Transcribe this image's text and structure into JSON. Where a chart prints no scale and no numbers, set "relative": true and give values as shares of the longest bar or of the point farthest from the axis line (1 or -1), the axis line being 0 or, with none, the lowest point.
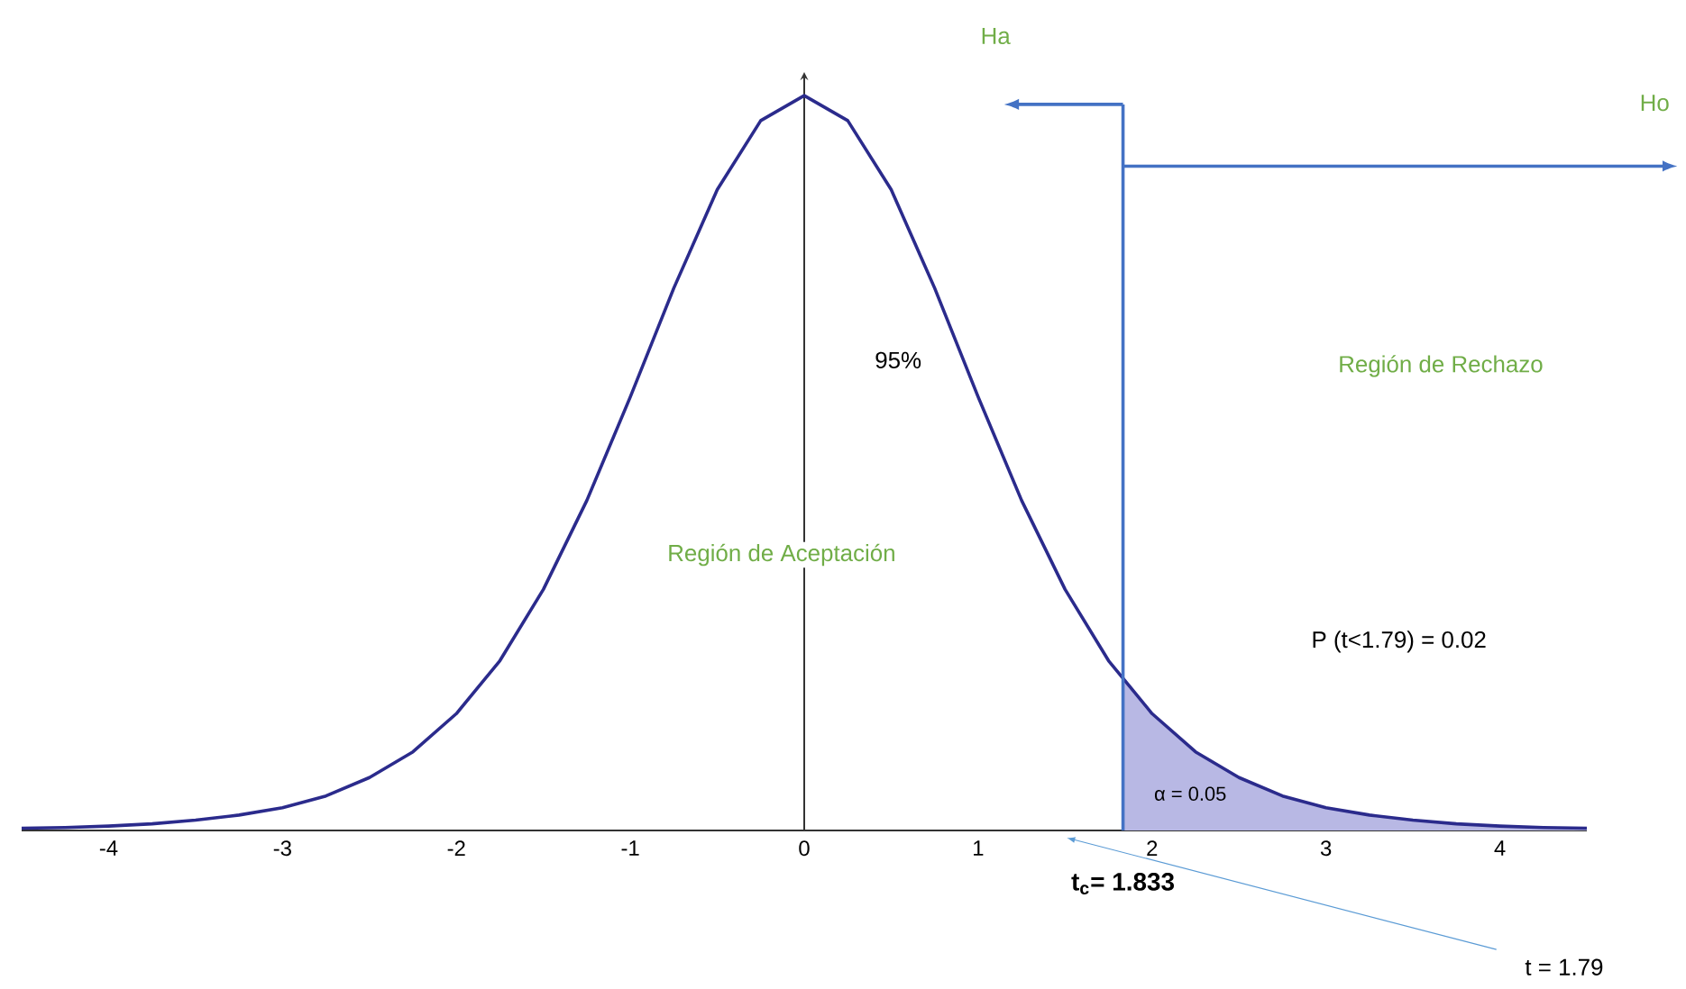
{
  "chart_data": {
    "type": "line",
    "relative": true,
    "xlim": [
      -4.5,
      4.5
    ],
    "xticks": [
      -4,
      -3,
      -2,
      -1,
      0,
      1,
      2,
      3,
      4
    ],
    "series": [
      {
        "type": "area",
        "color": "#b8b8e4",
        "x": [
          1.833,
          2,
          2.25,
          2.5,
          2.75,
          3,
          3.25,
          3.5,
          3.75,
          4,
          4.25,
          4.5
        ],
        "values": [
          0.205,
          0.159,
          0.107,
          0.072,
          0.047,
          0.031,
          0.021,
          0.014,
          0.009,
          0.006,
          0.004,
          0.003
        ]
      },
      {
        "type": "line",
        "color": "#2b2b8c",
        "x": [
          -4.5,
          -4.25,
          -4,
          -3.75,
          -3.5,
          -3.25,
          -3,
          -2.75,
          -2.5,
          -2.25,
          -2,
          -1.75,
          -1.5,
          -1.25,
          -1,
          -0.75,
          -0.5,
          -0.25,
          0,
          0.25,
          0.5,
          0.75,
          1,
          1.25,
          1.5,
          1.75,
          2,
          2.25,
          2.5,
          2.75,
          3,
          3.25,
          3.5,
          3.75,
          4,
          4.25,
          4.5
        ],
        "values": [
          0.003,
          0.004,
          0.006,
          0.009,
          0.014,
          0.021,
          0.031,
          0.047,
          0.072,
          0.107,
          0.159,
          0.231,
          0.328,
          0.449,
          0.59,
          0.738,
          0.872,
          0.966,
          1,
          0.966,
          0.872,
          0.738,
          0.59,
          0.449,
          0.328,
          0.231,
          0.159,
          0.107,
          0.072,
          0.047,
          0.031,
          0.021,
          0.014,
          0.009,
          0.006,
          0.004,
          0.003
        ]
      }
    ],
    "ref_lines": [
      {
        "axis": "x",
        "value": 1.833,
        "label": "t$_{c}$= 1.833",
        "color": "#4472c4"
      }
    ],
    "annotations": [
      "Ha",
      "Ho",
      "95%",
      "Región de Aceptación",
      "Región de Rechazo",
      "P (t<1.79) = 0.02",
      "α = 0.05",
      "t = 1.79"
    ]
  }
}
